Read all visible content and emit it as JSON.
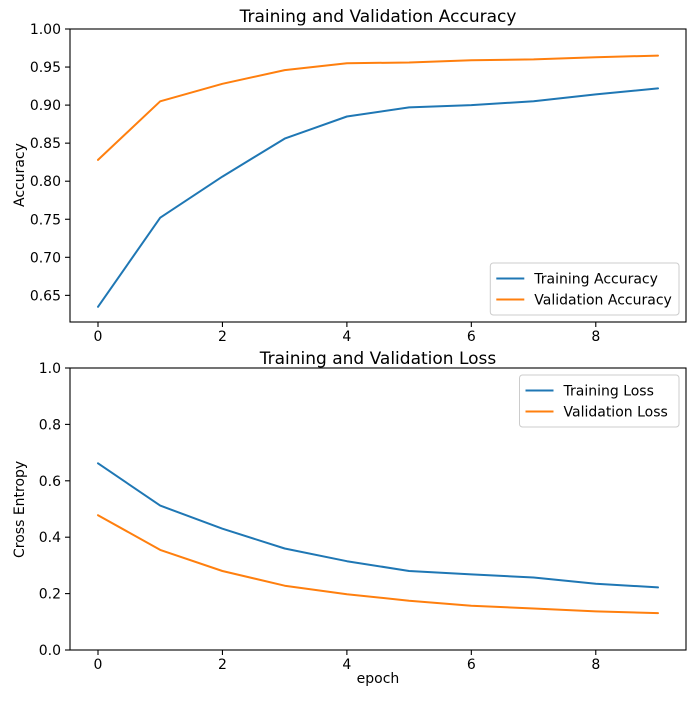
{
  "figure": {
    "background": "#ffffff",
    "axis_color": "#000000"
  },
  "chart_data": [
    {
      "type": "line",
      "title": "Training and Validation Accuracy",
      "xlabel": "",
      "ylabel": "Accuracy",
      "x": [
        0,
        1,
        2,
        3,
        4,
        5,
        6,
        7,
        8,
        9
      ],
      "xlim": [
        -0.45,
        9.45
      ],
      "ylim": [
        0.615,
        1.0
      ],
      "xticks": [
        0,
        2,
        4,
        6,
        8
      ],
      "xtick_labels": [
        "0",
        "2",
        "4",
        "6",
        "8"
      ],
      "yticks": [
        0.65,
        0.7,
        0.75,
        0.8,
        0.85,
        0.9,
        0.95,
        1.0
      ],
      "ytick_labels": [
        "0.65",
        "0.70",
        "0.75",
        "0.80",
        "0.85",
        "0.90",
        "0.95",
        "1.00"
      ],
      "grid": false,
      "legend_position": "lower-right",
      "series": [
        {
          "name": "Training Accuracy",
          "color": "#1f77b4",
          "values": [
            0.635,
            0.752,
            0.806,
            0.856,
            0.885,
            0.897,
            0.9,
            0.905,
            0.914,
            0.922
          ]
        },
        {
          "name": "Validation Accuracy",
          "color": "#ff7f0e",
          "values": [
            0.828,
            0.905,
            0.928,
            0.946,
            0.955,
            0.956,
            0.959,
            0.96,
            0.963,
            0.965
          ]
        }
      ]
    },
    {
      "type": "line",
      "title": "Training and Validation Loss",
      "xlabel": "epoch",
      "ylabel": "Cross Entropy",
      "x": [
        0,
        1,
        2,
        3,
        4,
        5,
        6,
        7,
        8,
        9
      ],
      "xlim": [
        -0.45,
        9.45
      ],
      "ylim": [
        0.0,
        1.0
      ],
      "xticks": [
        0,
        2,
        4,
        6,
        8
      ],
      "xtick_labels": [
        "0",
        "2",
        "4",
        "6",
        "8"
      ],
      "yticks": [
        0.0,
        0.2,
        0.4,
        0.6,
        0.8,
        1.0
      ],
      "ytick_labels": [
        "0.0",
        "0.2",
        "0.4",
        "0.6",
        "0.8",
        "1.0"
      ],
      "grid": false,
      "legend_position": "upper-right",
      "series": [
        {
          "name": "Training Loss",
          "color": "#1f77b4",
          "values": [
            0.662,
            0.512,
            0.43,
            0.36,
            0.315,
            0.28,
            0.268,
            0.257,
            0.235,
            0.222
          ]
        },
        {
          "name": "Validation Loss",
          "color": "#ff7f0e",
          "values": [
            0.478,
            0.355,
            0.28,
            0.228,
            0.198,
            0.175,
            0.157,
            0.147,
            0.137,
            0.131
          ]
        }
      ]
    }
  ]
}
